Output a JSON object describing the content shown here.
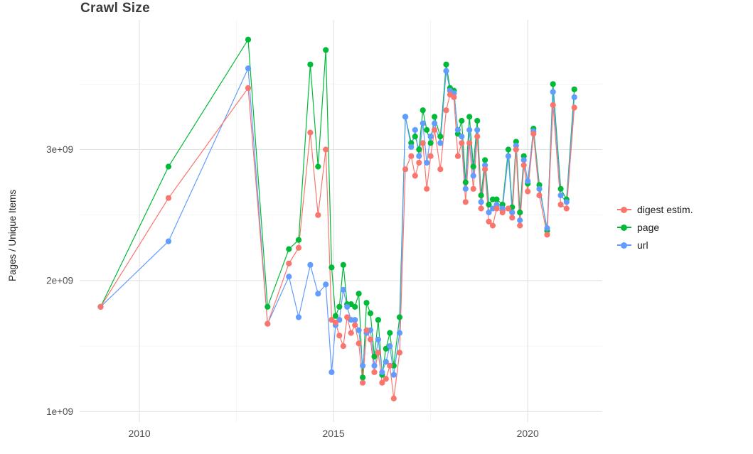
{
  "title": "Crawl Size",
  "y_axis_label": "Pages / Unique Items",
  "legend": {
    "items": [
      {
        "label": "digest estim.",
        "color": "#F8766D"
      },
      {
        "label": "page",
        "color": "#00BA38"
      },
      {
        "label": "url",
        "color": "#619CFF"
      }
    ]
  },
  "chart_data": {
    "type": "line",
    "title": "Crawl Size",
    "xlabel": "",
    "ylabel": "Pages / Unique Items",
    "grid": true,
    "legend_position": "right",
    "xlim": [
      2008.46,
      2021.92
    ],
    "ylim": [
      920000000.0,
      3990000000.0
    ],
    "x_ticks": [
      2010,
      2015,
      2020
    ],
    "x_tick_labels": [
      "2010",
      "2015",
      "2020"
    ],
    "x_minor_ticks": [
      2012.5,
      2017.5
    ],
    "y_ticks": [
      1000000000.0,
      2000000000.0,
      3000000000.0
    ],
    "y_tick_labels": [
      "1e+09",
      "2e+09",
      "3e+09"
    ],
    "y_minor_ticks": [
      1500000000.0,
      2500000000.0,
      3500000000.0
    ],
    "x": [
      2009.0,
      2010.75,
      2012.8,
      2013.3,
      2013.85,
      2014.1,
      2014.4,
      2014.6,
      2014.8,
      2014.95,
      2015.05,
      2015.15,
      2015.25,
      2015.35,
      2015.45,
      2015.55,
      2015.65,
      2015.75,
      2015.85,
      2015.95,
      2016.05,
      2016.15,
      2016.25,
      2016.35,
      2016.45,
      2016.55,
      2016.7,
      2016.85,
      2017.0,
      2017.1,
      2017.2,
      2017.3,
      2017.4,
      2017.5,
      2017.6,
      2017.75,
      2017.9,
      2018.0,
      2018.1,
      2018.2,
      2018.3,
      2018.4,
      2018.5,
      2018.6,
      2018.7,
      2018.8,
      2018.9,
      2019.0,
      2019.1,
      2019.2,
      2019.35,
      2019.5,
      2019.6,
      2019.7,
      2019.8,
      2019.9,
      2020.0,
      2020.15,
      2020.3,
      2020.5,
      2020.65,
      2020.85,
      2021.0,
      2021.2
    ],
    "series": [
      {
        "name": "digest estim.",
        "key": "digest",
        "color": "#F8766D",
        "values": [
          1800000000.0,
          2630000000.0,
          3470000000.0,
          1670000000.0,
          2130000000.0,
          2250000000.0,
          3130000000.0,
          2500000000.0,
          3000000000.0,
          1700000000.0,
          1680000000.0,
          1580000000.0,
          1500000000.0,
          1720000000.0,
          1600000000.0,
          1660000000.0,
          1520000000.0,
          1220000000.0,
          1620000000.0,
          1550000000.0,
          1300000000.0,
          1450000000.0,
          1220000000.0,
          1250000000.0,
          1350000000.0,
          1100000000.0,
          1450000000.0,
          2850000000.0,
          2950000000.0,
          2800000000.0,
          2900000000.0,
          3050000000.0,
          2700000000.0,
          2950000000.0,
          3150000000.0,
          2850000000.0,
          3300000000.0,
          3420000000.0,
          3400000000.0,
          2950000000.0,
          3050000000.0,
          2600000000.0,
          3050000000.0,
          2700000000.0,
          3100000000.0,
          2550000000.0,
          2850000000.0,
          2450000000.0,
          2420000000.0,
          2550000000.0,
          2520000000.0,
          2550000000.0,
          2480000000.0,
          3000000000.0,
          2420000000.0,
          2880000000.0,
          2680000000.0,
          3120000000.0,
          2650000000.0,
          2350000000.0,
          3340000000.0,
          2580000000.0,
          2550000000.0,
          3320000000.0
        ]
      },
      {
        "name": "page",
        "key": "page",
        "color": "#00BA38",
        "values": [
          1800000000.0,
          2870000000.0,
          3840000000.0,
          1800000000.0,
          2240000000.0,
          2310000000.0,
          3650000000.0,
          2870000000.0,
          3760000000.0,
          2100000000.0,
          1730000000.0,
          1800000000.0,
          2120000000.0,
          1820000000.0,
          1820000000.0,
          1800000000.0,
          1900000000.0,
          1260000000.0,
          1830000000.0,
          1750000000.0,
          1420000000.0,
          1700000000.0,
          1280000000.0,
          1480000000.0,
          1600000000.0,
          1350000000.0,
          1720000000.0,
          3250000000.0,
          3050000000.0,
          3100000000.0,
          3000000000.0,
          3300000000.0,
          3150000000.0,
          3050000000.0,
          3250000000.0,
          3100000000.0,
          3650000000.0,
          3470000000.0,
          3450000000.0,
          3120000000.0,
          3220000000.0,
          2750000000.0,
          3250000000.0,
          2870000000.0,
          3220000000.0,
          2650000000.0,
          2920000000.0,
          2580000000.0,
          2620000000.0,
          2620000000.0,
          2580000000.0,
          3000000000.0,
          2560000000.0,
          3060000000.0,
          2520000000.0,
          2950000000.0,
          2740000000.0,
          3160000000.0,
          2730000000.0,
          2380000000.0,
          3500000000.0,
          2700000000.0,
          2620000000.0,
          3460000000.0
        ]
      },
      {
        "name": "url",
        "key": "url",
        "color": "#619CFF",
        "values": [
          1800000000.0,
          2300000000.0,
          3620000000.0,
          1670000000.0,
          2030000000.0,
          1720000000.0,
          2120000000.0,
          1900000000.0,
          1970000000.0,
          1300000000.0,
          1660000000.0,
          1700000000.0,
          1930000000.0,
          1800000000.0,
          1700000000.0,
          1700000000.0,
          1620000000.0,
          1350000000.0,
          1600000000.0,
          1620000000.0,
          1350000000.0,
          1550000000.0,
          1300000000.0,
          1380000000.0,
          1500000000.0,
          1280000000.0,
          1600000000.0,
          3250000000.0,
          3020000000.0,
          3150000000.0,
          2950000000.0,
          3200000000.0,
          2900000000.0,
          3100000000.0,
          3200000000.0,
          3050000000.0,
          3600000000.0,
          3450000000.0,
          3430000000.0,
          3150000000.0,
          3100000000.0,
          2700000000.0,
          3150000000.0,
          2800000000.0,
          3150000000.0,
          2600000000.0,
          2880000000.0,
          2520000000.0,
          2550000000.0,
          2580000000.0,
          2550000000.0,
          2950000000.0,
          2520000000.0,
          3030000000.0,
          2460000000.0,
          2920000000.0,
          2760000000.0,
          3140000000.0,
          2700000000.0,
          2400000000.0,
          3440000000.0,
          2650000000.0,
          2600000000.0,
          3400000000.0
        ]
      }
    ]
  }
}
